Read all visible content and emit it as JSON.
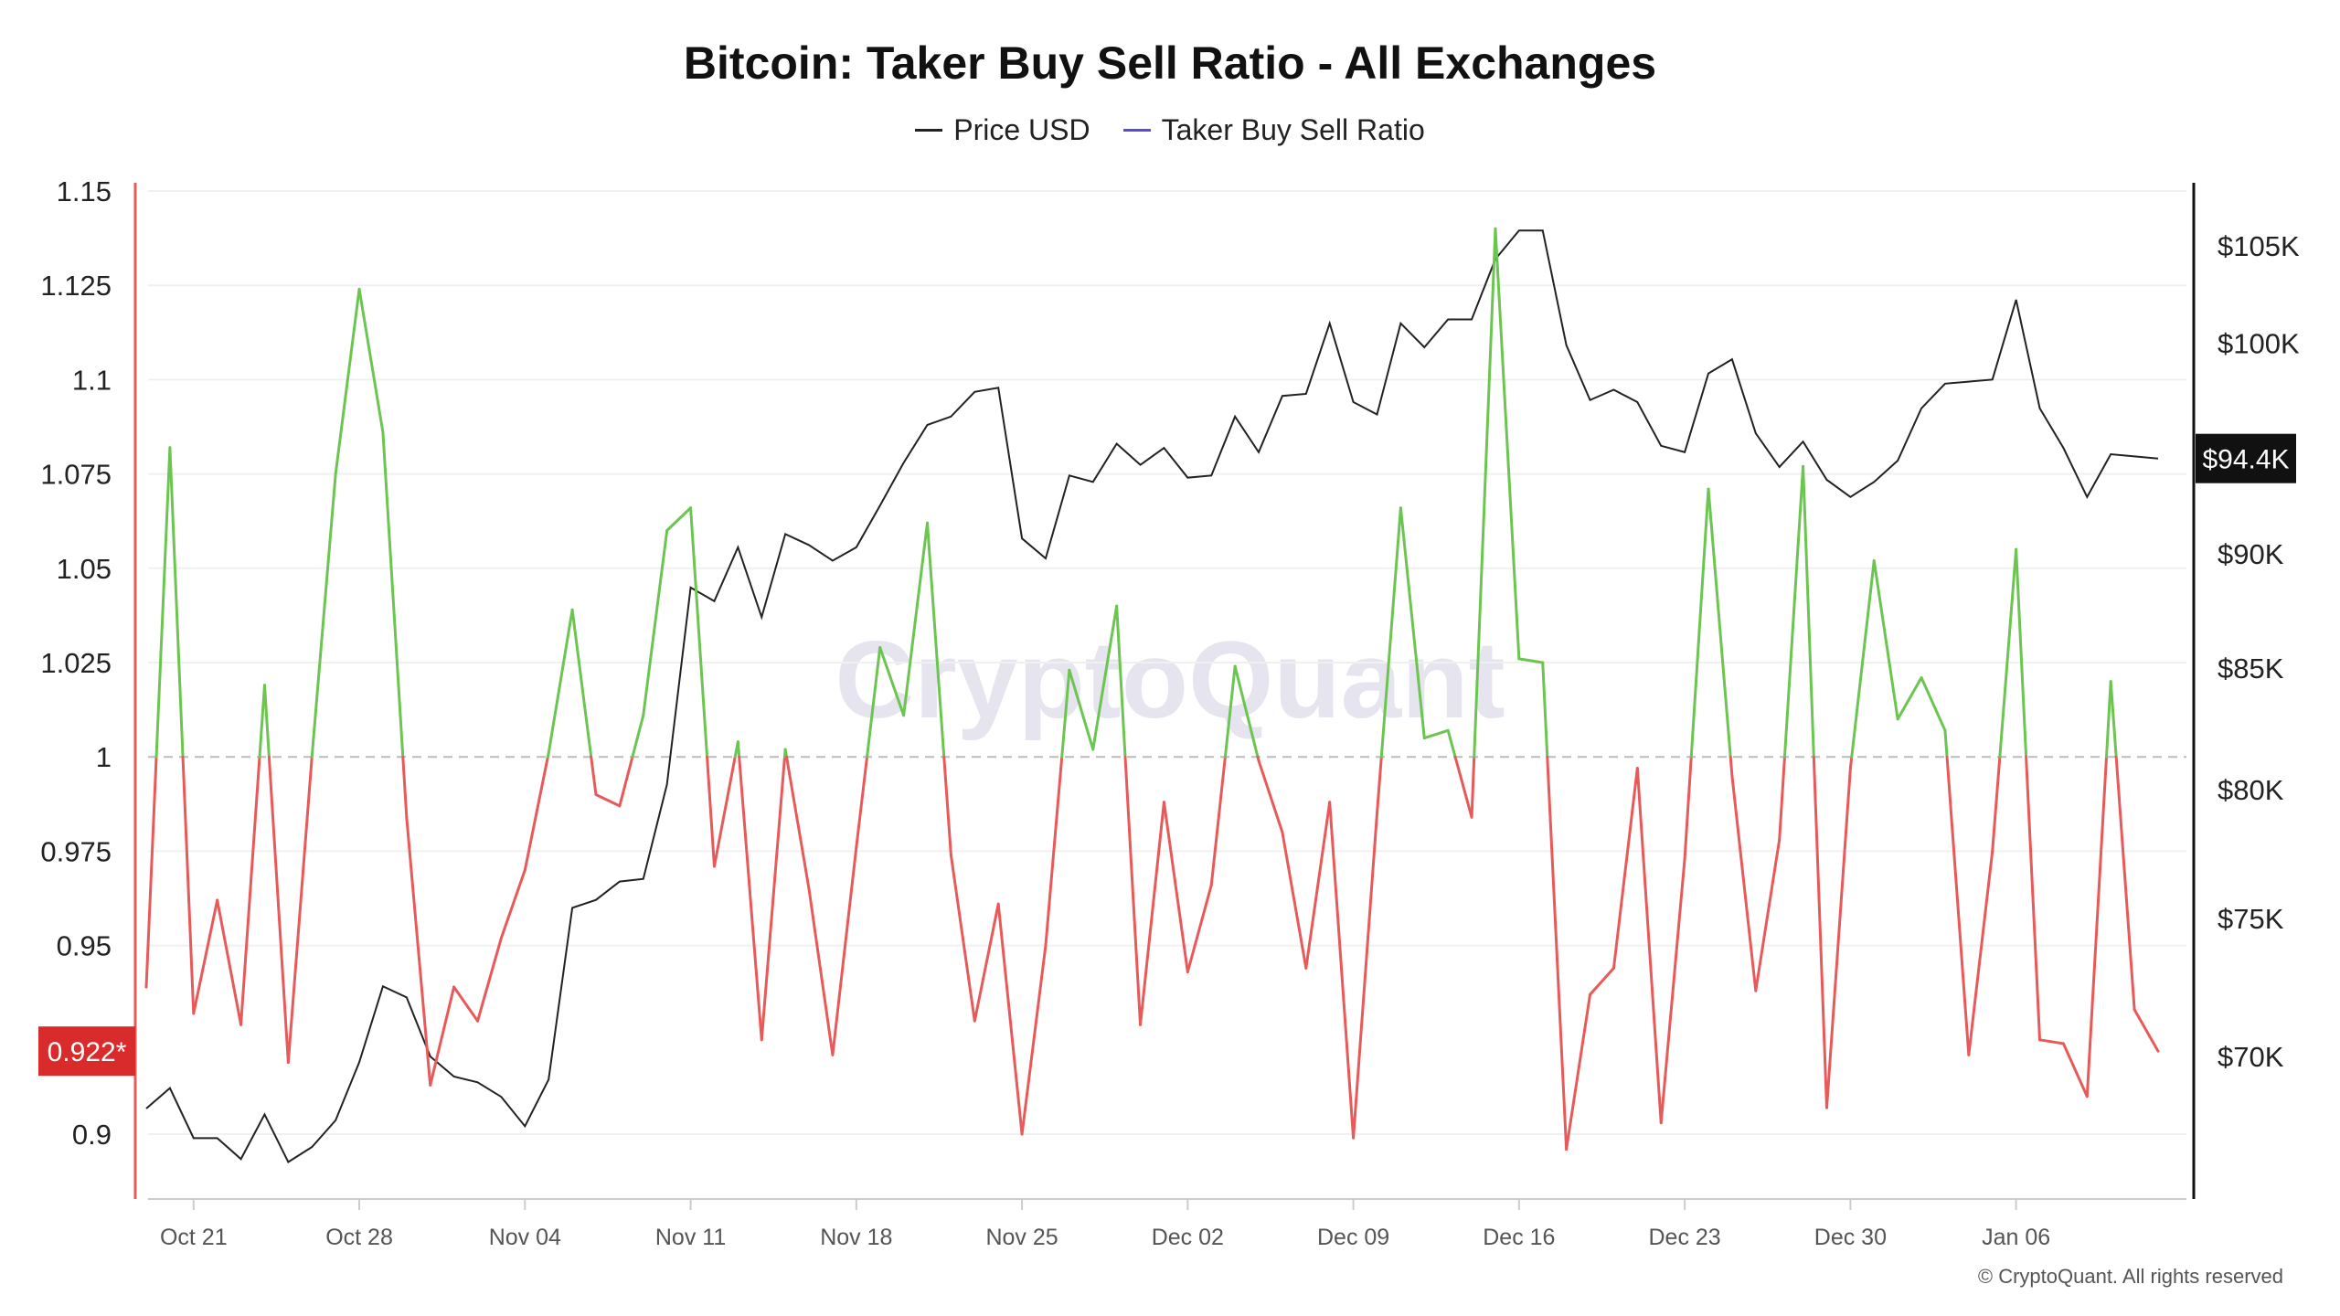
{
  "chart_data": {
    "type": "line",
    "title": "Bitcoin: Taker Buy Sell Ratio - All Exchanges",
    "legend": [
      {
        "name": "Price USD",
        "color": "#222222"
      },
      {
        "name": "Taker Buy Sell Ratio",
        "color": "#5b4bdb"
      }
    ],
    "legend_position": "top-center",
    "grid": true,
    "left_axis": {
      "ylim": [
        0.88,
        1.15
      ],
      "ticks": [
        1.15,
        1.125,
        1.1,
        1.075,
        1.05,
        1.025,
        1,
        0.975,
        0.95,
        0.9
      ],
      "tick_labels": [
        "1.15",
        "1.125",
        "1.1",
        "1.075",
        "1.05",
        "1.025",
        "1",
        "0.975",
        "0.95",
        "0.9"
      ],
      "reference_line": 1
    },
    "right_axis": {
      "scale": "log",
      "ticks": [
        105000,
        100000,
        90000,
        85000,
        80000,
        75000,
        70000
      ],
      "tick_labels": [
        "$105K",
        "$100K",
        "$90K",
        "$85K",
        "$80K",
        "$75K",
        "$70K"
      ]
    },
    "x_tick_labels": [
      "Oct 21",
      "Oct 28",
      "Nov 04",
      "Nov 11",
      "Nov 18",
      "Nov 25",
      "Dec 02",
      "Dec 09",
      "Dec 16",
      "Dec 23",
      "Dec 30",
      "Jan 06"
    ],
    "x": [
      "Oct 19",
      "Oct 20",
      "Oct 21",
      "Oct 22",
      "Oct 23",
      "Oct 24",
      "Oct 25",
      "Oct 26",
      "Oct 27",
      "Oct 28",
      "Oct 29",
      "Oct 30",
      "Oct 31",
      "Nov 01",
      "Nov 02",
      "Nov 03",
      "Nov 04",
      "Nov 05",
      "Nov 06",
      "Nov 07",
      "Nov 08",
      "Nov 09",
      "Nov 10",
      "Nov 11",
      "Nov 12",
      "Nov 13",
      "Nov 14",
      "Nov 15",
      "Nov 16",
      "Nov 17",
      "Nov 18",
      "Nov 19",
      "Nov 20",
      "Nov 21",
      "Nov 22",
      "Nov 23",
      "Nov 24",
      "Nov 25",
      "Nov 26",
      "Nov 27",
      "Nov 28",
      "Nov 29",
      "Nov 30",
      "Dec 01",
      "Dec 02",
      "Dec 03",
      "Dec 04",
      "Dec 05",
      "Dec 06",
      "Dec 07",
      "Dec 08",
      "Dec 09",
      "Dec 10",
      "Dec 11",
      "Dec 12",
      "Dec 13",
      "Dec 14",
      "Dec 15",
      "Dec 16",
      "Dec 17",
      "Dec 18",
      "Dec 19",
      "Dec 20",
      "Dec 21",
      "Dec 22",
      "Dec 23",
      "Dec 24",
      "Dec 25",
      "Dec 26",
      "Dec 27",
      "Dec 28",
      "Dec 29",
      "Dec 30",
      "Dec 31",
      "Jan 01",
      "Jan 02",
      "Jan 03",
      "Jan 04",
      "Jan 05",
      "Jan 06",
      "Jan 07",
      "Jan 08",
      "Jan 09",
      "Jan 10",
      "Jan 11",
      "Jan 12"
    ],
    "series": [
      {
        "name": "Taker Buy Sell Ratio",
        "axis": "left",
        "color_above": "#6cc551",
        "color_below": "#e85a5a",
        "values": [
          0.939,
          1.082,
          0.932,
          0.962,
          0.929,
          1.019,
          0.919,
          1.0,
          1.075,
          1.124,
          1.086,
          0.984,
          0.913,
          0.939,
          0.93,
          0.952,
          0.97,
          1.001,
          1.039,
          0.99,
          0.987,
          1.011,
          1.06,
          1.066,
          0.971,
          1.004,
          0.925,
          1.002,
          0.965,
          0.921,
          0.976,
          1.029,
          1.011,
          1.062,
          0.974,
          0.93,
          0.961,
          0.9,
          0.95,
          1.023,
          1.002,
          1.04,
          0.929,
          0.988,
          0.943,
          0.966,
          1.024,
          0.999,
          0.98,
          0.944,
          0.988,
          0.899,
          0.985,
          1.066,
          1.005,
          1.007,
          0.984,
          1.14,
          1.026,
          1.025,
          0.896,
          0.937,
          0.944,
          0.997,
          0.903,
          0.973,
          1.071,
          0.995,
          0.938,
          0.978,
          1.077,
          0.907,
          0.997,
          1.052,
          1.01,
          1.021,
          1.007,
          0.921,
          0.975,
          1.055,
          0.925,
          0.924,
          0.91,
          1.02,
          0.933,
          0.922
        ]
      },
      {
        "name": "Price USD",
        "axis": "right",
        "color": "#222222",
        "values": [
          68200,
          68900,
          67200,
          67200,
          66500,
          68000,
          66400,
          66900,
          67800,
          69800,
          72500,
          72100,
          70000,
          69300,
          69100,
          68600,
          67600,
          69200,
          75400,
          75700,
          76400,
          76500,
          80200,
          88500,
          87900,
          90300,
          87200,
          90900,
          90400,
          89700,
          90300,
          92200,
          94200,
          96000,
          96400,
          97600,
          97800,
          90700,
          89800,
          93600,
          93300,
          95100,
          94100,
          94900,
          93500,
          93600,
          96400,
          94700,
          97400,
          97500,
          101000,
          97100,
          96500,
          101000,
          99800,
          101200,
          101200,
          104300,
          105800,
          105800,
          99900,
          97200,
          97700,
          97100,
          95000,
          94700,
          98500,
          99200,
          95600,
          94000,
          95200,
          93400,
          92600,
          93300,
          94300,
          96800,
          98000,
          98100,
          98200,
          102200,
          96800,
          94900,
          92600,
          94600,
          94500,
          94400
        ]
      }
    ],
    "current_badges": {
      "ratio": "0.922*",
      "price": "$94.4K"
    },
    "watermark": "CryptoQuant"
  },
  "footer": {
    "copyright": "© CryptoQuant. All rights reserved"
  }
}
